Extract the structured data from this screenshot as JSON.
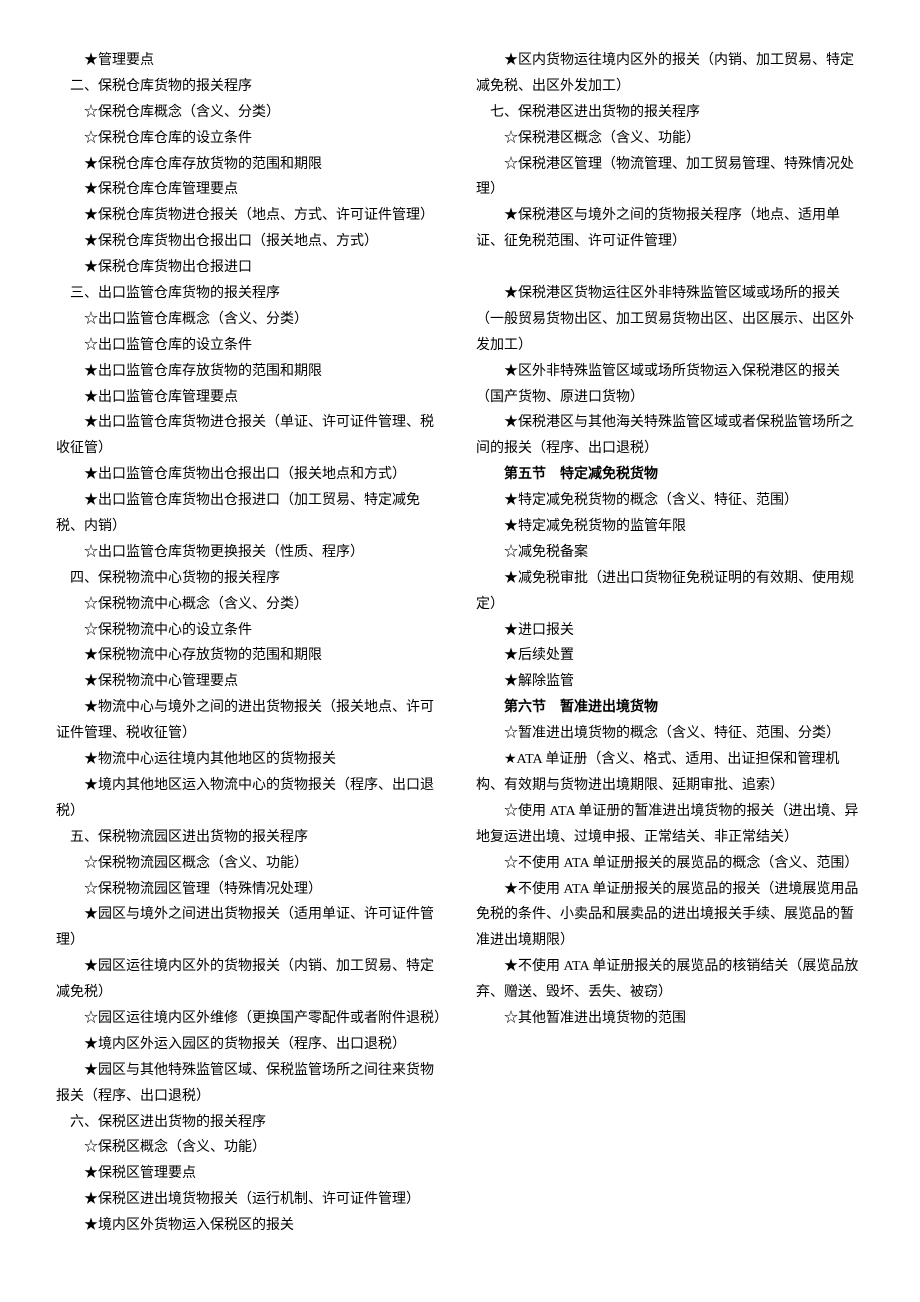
{
  "lines": [
    {
      "text": "★管理要点",
      "indent": 2
    },
    {
      "text": "二、保税仓库货物的报关程序",
      "indent": 1
    },
    {
      "text": "☆保税仓库概念（含义、分类）",
      "indent": 2
    },
    {
      "text": "☆保税仓库仓库的设立条件",
      "indent": 2
    },
    {
      "text": "★保税仓库仓库存放货物的范围和期限",
      "indent": 2
    },
    {
      "text": "★保税仓库仓库管理要点",
      "indent": 2
    },
    {
      "text": "★保税仓库货物进仓报关（地点、方式、许可证件管理）",
      "indent": 2
    },
    {
      "text": "★保税仓库货物出仓报出口（报关地点、方式）",
      "indent": 2
    },
    {
      "text": "★保税仓库货物出仓报进口",
      "indent": 2
    },
    {
      "text": "三、出口监管仓库货物的报关程序",
      "indent": 1
    },
    {
      "text": "☆出口监管仓库概念（含义、分类）",
      "indent": 2
    },
    {
      "text": "☆出口监管仓库的设立条件",
      "indent": 2
    },
    {
      "text": "★出口监管仓库存放货物的范围和期限",
      "indent": 2
    },
    {
      "text": "★出口监管仓库管理要点",
      "indent": 2
    },
    {
      "text": "★出口监管仓库货物进仓报关（单证、许可证件管理、税收征管）",
      "indent": 2
    },
    {
      "text": "★出口监管仓库货物出仓报出口（报关地点和方式）",
      "indent": 2
    },
    {
      "text": "★出口监管仓库货物出仓报进口（加工贸易、特定减免税、内销）",
      "indent": 2
    },
    {
      "text": "☆出口监管仓库货物更换报关（性质、程序）",
      "indent": 2
    },
    {
      "text": "四、保税物流中心货物的报关程序",
      "indent": 1
    },
    {
      "text": "☆保税物流中心概念（含义、分类）",
      "indent": 2
    },
    {
      "text": "☆保税物流中心的设立条件",
      "indent": 2
    },
    {
      "text": "★保税物流中心存放货物的范围和期限",
      "indent": 2
    },
    {
      "text": "★保税物流中心管理要点",
      "indent": 2
    },
    {
      "text": "★物流中心与境外之间的进出货物报关（报关地点、许可证件管理、税收征管）",
      "indent": 2
    },
    {
      "text": "★物流中心运往境内其他地区的货物报关",
      "indent": 2
    },
    {
      "text": "★境内其他地区运入物流中心的货物报关（程序、出口退税）",
      "indent": 2
    },
    {
      "text": "五、保税物流园区进出货物的报关程序",
      "indent": 1
    },
    {
      "text": "☆保税物流园区概念（含义、功能）",
      "indent": 2
    },
    {
      "text": "☆保税物流园区管理（特殊情况处理）",
      "indent": 2
    },
    {
      "text": "★园区与境外之间进出货物报关（适用单证、许可证件管理）",
      "indent": 2
    },
    {
      "text": "★园区运往境内区外的货物报关（内销、加工贸易、特定减免税）",
      "indent": 2
    },
    {
      "text": "☆园区运往境内区外维修（更换国产零配件或者附件退税）",
      "indent": 2
    },
    {
      "text": "★境内区外运入园区的货物报关（程序、出口退税）",
      "indent": 2
    },
    {
      "text": "★园区与其他特殊监管区域、保税监管场所之间往来货物报关（程序、出口退税）",
      "indent": 2
    },
    {
      "text": "六、保税区进出货物的报关程序",
      "indent": 1
    },
    {
      "text": "☆保税区概念（含义、功能）",
      "indent": 2
    },
    {
      "text": "★保税区管理要点",
      "indent": 2
    },
    {
      "text": "★保税区进出境货物报关（运行机制、许可证件管理）",
      "indent": 2
    },
    {
      "text": "★境内区外货物运入保税区的报关",
      "indent": 2
    },
    {
      "text": "★区内货物运往境内区外的报关（内销、加工贸易、特定减免税、出区外发加工）",
      "indent": 2
    },
    {
      "text": "七、保税港区进出货物的报关程序",
      "indent": 1
    },
    {
      "text": "☆保税港区概念（含义、功能）",
      "indent": 2
    },
    {
      "text": "☆保税港区管理（物流管理、加工贸易管理、特殊情况处理）",
      "indent": 2
    },
    {
      "text": "★保税港区与境外之间的货物报关程序（地点、适用单证、征免税范围、许可证件管理）",
      "indent": 2
    },
    {
      "text": "",
      "indent": 0,
      "blank": true
    },
    {
      "text": "★保税港区货物运往区外非特殊监管区域或场所的报关（一般贸易货物出区、加工贸易货物出区、出区展示、出区外发加工）",
      "indent": 2
    },
    {
      "text": "★区外非特殊监管区域或场所货物运入保税港区的报关（国产货物、原进口货物）",
      "indent": 2
    },
    {
      "text": "★保税港区与其他海关特殊监管区域或者保税监管场所之间的报关（程序、出口退税）",
      "indent": 2
    },
    {
      "text": "第五节　特定减免税货物",
      "indent": 1,
      "bold": true
    },
    {
      "text": "★特定减免税货物的概念（含义、特征、范围）",
      "indent": 2
    },
    {
      "text": "★特定减免税货物的监管年限",
      "indent": 2
    },
    {
      "text": "☆减免税备案",
      "indent": 2
    },
    {
      "text": "★减免税审批（进出口货物征免税证明的有效期、使用规定）",
      "indent": 2
    },
    {
      "text": "★进口报关",
      "indent": 2
    },
    {
      "text": "★后续处置",
      "indent": 2
    },
    {
      "text": "★解除监管",
      "indent": 2
    },
    {
      "text": "第六节　暂准进出境货物",
      "indent": 1,
      "bold": true
    },
    {
      "text": "☆暂准进出境货物的概念（含义、特征、范围、分类）",
      "indent": 2
    },
    {
      "text": "★ATA 单证册（含义、格式、适用、出证担保和管理机构、有效期与货物进出境期限、延期审批、追索）",
      "indent": 2
    },
    {
      "text": "☆使用 ATA 单证册的暂准进出境货物的报关（进出境、异地复运进出境、过境申报、正常结关、非正常结关）",
      "indent": 2
    },
    {
      "text": "☆不使用 ATA 单证册报关的展览品的概念（含义、范围）",
      "indent": 2
    },
    {
      "text": "★不使用 ATA 单证册报关的展览品的报关（进境展览用品免税的条件、小卖品和展卖品的进出境报关手续、展览品的暂准进出境期限）",
      "indent": 2
    },
    {
      "text": "★不使用 ATA 单证册报关的展览品的核销结关（展览品放弃、赠送、毁坏、丢失、被窃）",
      "indent": 2
    },
    {
      "text": "☆其他暂准进出境货物的范围",
      "indent": 2
    }
  ]
}
